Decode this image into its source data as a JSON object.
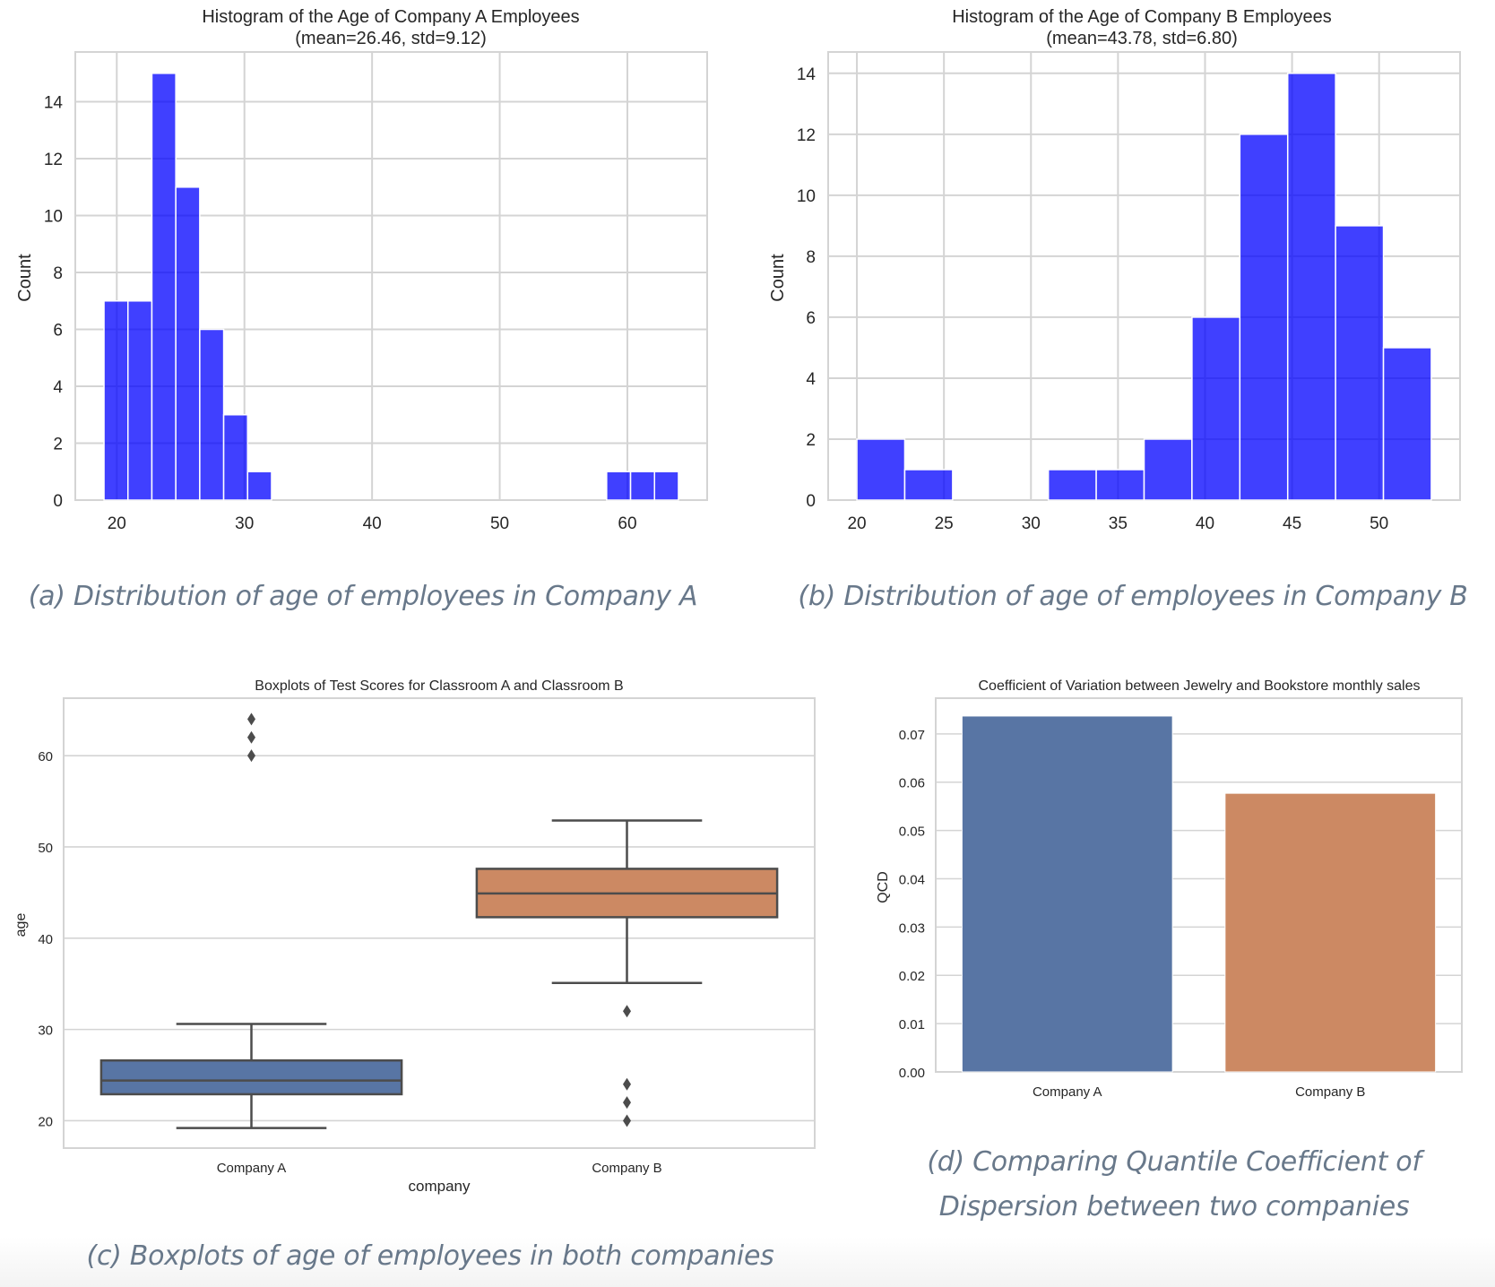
{
  "colors": {
    "hist_bar": "#0000ff",
    "hist_bar_opacity": 0.75,
    "grid": "#d4d4d4",
    "company_a": "#5875a4",
    "company_b": "#cc8963",
    "box_line": "#4c4c4c",
    "caption": "#68788a"
  },
  "chart_data": [
    {
      "id": "hist_a",
      "type": "bar",
      "subtype": "histogram",
      "title": "Histogram of the Age of Company A Employees",
      "subtitle": "(mean=26.46, std=9.12)",
      "xlabel": "",
      "ylabel": "Count",
      "bin_start": 19,
      "bin_width": 1.875,
      "counts": [
        7,
        7,
        15,
        11,
        6,
        3,
        1,
        0,
        0,
        0,
        0,
        0,
        0,
        0,
        0,
        0,
        0,
        0,
        0,
        0,
        0,
        1,
        1,
        1
      ],
      "xlim": [
        16.75,
        66.25
      ],
      "ylim": [
        0,
        15.75
      ],
      "xticks": [
        20,
        30,
        40,
        50,
        60
      ],
      "yticks": [
        0,
        2,
        4,
        6,
        8,
        10,
        12,
        14
      ],
      "grid": true
    },
    {
      "id": "hist_b",
      "type": "bar",
      "subtype": "histogram",
      "title": "Histogram of the Age of Company B Employees",
      "subtitle": "(mean=43.78, std=6.80)",
      "xlabel": "",
      "ylabel": "Count",
      "bin_start": 20,
      "bin_width": 2.75,
      "counts": [
        2,
        1,
        0,
        0,
        1,
        1,
        2,
        6,
        12,
        14,
        9,
        5
      ],
      "xlim": [
        18.35,
        54.65
      ],
      "ylim": [
        0,
        14.7
      ],
      "xticks": [
        20,
        25,
        30,
        35,
        40,
        45,
        50
      ],
      "yticks": [
        0,
        2,
        4,
        6,
        8,
        10,
        12,
        14
      ],
      "grid": true
    },
    {
      "id": "boxplot",
      "type": "boxplot",
      "title": "Boxplots of Test Scores for Classroom A and Classroom B",
      "xlabel": "company",
      "ylabel": "age",
      "categories": [
        "Company A",
        "Company B"
      ],
      "boxes": [
        {
          "name": "Company A",
          "whisker_low": 19.2,
          "q1": 22.9,
          "median": 24.4,
          "q3": 26.6,
          "whisker_high": 30.6,
          "outliers": [
            60,
            62,
            64
          ]
        },
        {
          "name": "Company B",
          "whisker_low": 35.1,
          "q1": 42.3,
          "median": 44.9,
          "q3": 47.6,
          "whisker_high": 52.9,
          "outliers": [
            32,
            24,
            22,
            20
          ]
        }
      ],
      "ylim": [
        17.0,
        66.3
      ],
      "yticks": [
        20,
        30,
        40,
        50,
        60
      ],
      "grid": true
    },
    {
      "id": "qcd_bar",
      "type": "bar",
      "title": "Coefficient of Variation between Jewelry and Bookstore monthly sales",
      "xlabel": "",
      "ylabel": "QCD",
      "categories": [
        "Company A",
        "Company B"
      ],
      "values": [
        0.0737,
        0.0577
      ],
      "ylim": [
        0,
        0.0774
      ],
      "yticks": [
        "0.00",
        "0.01",
        "0.02",
        "0.03",
        "0.04",
        "0.05",
        "0.06",
        "0.07"
      ],
      "grid": true
    }
  ],
  "captions": {
    "a": "(a) Distribution of age of employees in Company A",
    "b": "(b) Distribution of age of employees in Company B",
    "c": "(c) Boxplots of age of employees in both companies",
    "d": "(d) Comparing Quantile Coefficient of Dispersion between two companies"
  }
}
